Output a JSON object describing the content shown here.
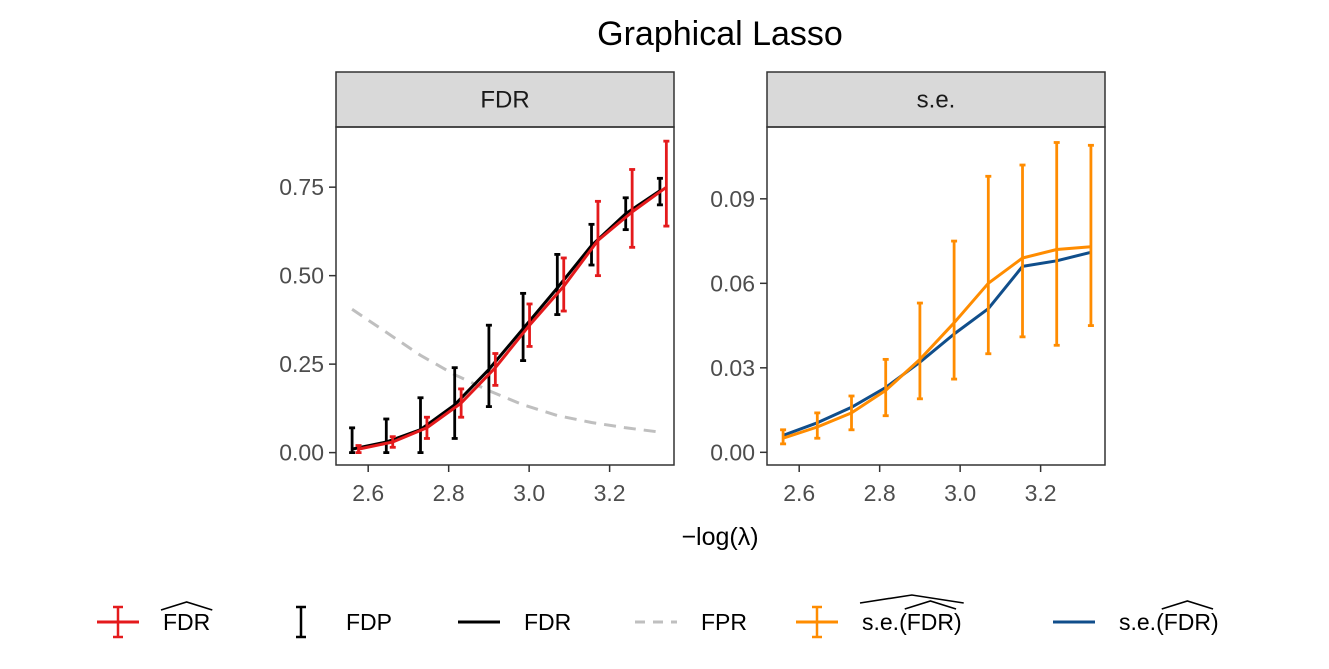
{
  "chart_data": {
    "title": "Graphical Lasso",
    "xlabel": "−log(λ)",
    "panels": [
      {
        "strip": "FDR",
        "type": "line",
        "xlim": [
          2.52,
          3.36
        ],
        "ylim": [
          -0.035,
          0.92
        ],
        "xticks": [
          2.6,
          2.8,
          3.0,
          3.2
        ],
        "xtick_labels": [
          "2.6",
          "2.8",
          "3.0",
          "3.2"
        ],
        "yticks": [
          0.0,
          0.25,
          0.5,
          0.75
        ],
        "ytick_labels": [
          "0.00",
          "0.25",
          "0.50",
          "0.75"
        ],
        "series": [
          {
            "name": "FDR (estimate)",
            "legend": "FDR",
            "hat": true,
            "color": "#e41a1c",
            "style": "errorbar-line",
            "x": [
              2.576,
              2.661,
              2.746,
              2.831,
              2.916,
              3.001,
              3.086,
              3.171,
              3.256,
              3.341
            ],
            "values": [
              0.01,
              0.03,
              0.07,
              0.14,
              0.24,
              0.36,
              0.47,
              0.6,
              0.68,
              0.75
            ],
            "lower": [
              0.0,
              0.015,
              0.04,
              0.1,
              0.19,
              0.3,
              0.4,
              0.5,
              0.58,
              0.64
            ],
            "upper": [
              0.02,
              0.045,
              0.1,
              0.18,
              0.28,
              0.42,
              0.55,
              0.71,
              0.8,
              0.88
            ]
          },
          {
            "name": "FDP",
            "legend": "FDP",
            "color": "#000000",
            "style": "errorbar",
            "x": [
              2.56,
              2.645,
              2.73,
              2.815,
              2.9,
              2.985,
              3.07,
              3.155,
              3.24,
              3.325
            ],
            "values": [
              0.035,
              0.045,
              0.075,
              0.14,
              0.245,
              0.355,
              0.475,
              0.585,
              0.675,
              0.74
            ],
            "lower": [
              0.0,
              0.0,
              0.0,
              0.04,
              0.13,
              0.26,
              0.39,
              0.53,
              0.63,
              0.7
            ],
            "upper": [
              0.07,
              0.095,
              0.155,
              0.24,
              0.36,
              0.45,
              0.56,
              0.645,
              0.72,
              0.775
            ]
          },
          {
            "name": "FDR",
            "legend": "FDR",
            "color": "#000000",
            "style": "line",
            "x": [
              2.56,
              2.645,
              2.73,
              2.815,
              2.9,
              2.985,
              3.07,
              3.155,
              3.24,
              3.325
            ],
            "values": [
              0.01,
              0.03,
              0.065,
              0.135,
              0.235,
              0.35,
              0.465,
              0.585,
              0.675,
              0.74
            ]
          },
          {
            "name": "FPR",
            "legend": "FPR",
            "color": "#bfbfbf",
            "style": "dashed",
            "x": [
              2.56,
              2.645,
              2.73,
              2.815,
              2.9,
              2.985,
              3.07,
              3.155,
              3.24,
              3.325
            ],
            "values": [
              0.405,
              0.34,
              0.275,
              0.22,
              0.175,
              0.135,
              0.105,
              0.085,
              0.07,
              0.058
            ]
          }
        ]
      },
      {
        "strip": "s.e.",
        "type": "line",
        "xlim": [
          2.52,
          3.36
        ],
        "ylim": [
          -0.0045,
          0.1155
        ],
        "xticks": [
          2.6,
          2.8,
          3.0,
          3.2
        ],
        "xtick_labels": [
          "2.6",
          "2.8",
          "3.0",
          "3.2"
        ],
        "yticks": [
          0.0,
          0.03,
          0.06,
          0.09
        ],
        "ytick_labels": [
          "0.00",
          "0.03",
          "0.06",
          "0.09"
        ],
        "series": [
          {
            "name": "s.e.(FDR) estimate",
            "legend_prefix": "s.e.",
            "legend_inner": "FDR",
            "hat_outer": true,
            "color": "#ff8c00",
            "style": "errorbar-line",
            "x": [
              2.56,
              2.645,
              2.73,
              2.815,
              2.9,
              2.985,
              3.07,
              3.155,
              3.24,
              3.325
            ],
            "values": [
              0.005,
              0.009,
              0.014,
              0.022,
              0.033,
              0.046,
              0.06,
              0.069,
              0.072,
              0.073
            ],
            "lower": [
              0.003,
              0.005,
              0.008,
              0.013,
              0.019,
              0.026,
              0.035,
              0.041,
              0.038,
              0.045
            ],
            "upper": [
              0.008,
              0.014,
              0.02,
              0.033,
              0.053,
              0.075,
              0.098,
              0.102,
              0.11,
              0.109
            ]
          },
          {
            "name": "s.e.(FDR)",
            "legend_prefix": "s.e.",
            "legend_inner": "FDR",
            "hat_outer": false,
            "color": "#104e8b",
            "style": "line",
            "x": [
              2.56,
              2.645,
              2.73,
              2.815,
              2.9,
              2.985,
              3.07,
              3.155,
              3.24,
              3.325
            ],
            "values": [
              0.006,
              0.0105,
              0.016,
              0.023,
              0.032,
              0.042,
              0.051,
              0.066,
              0.068,
              0.071
            ]
          }
        ]
      }
    ],
    "legend": {
      "position": "bottom",
      "items": [
        {
          "label": "FDR",
          "hat": true,
          "key": "errorbar-line",
          "color": "#e41a1c"
        },
        {
          "label": "FDP",
          "hat": false,
          "key": "errorbar",
          "color": "#000000"
        },
        {
          "label": "FDR",
          "hat": false,
          "key": "line",
          "color": "#000000"
        },
        {
          "label": "FPR",
          "hat": false,
          "key": "dashed",
          "color": "#bfbfbf"
        },
        {
          "prefix": "s.e.",
          "inner": "FDR",
          "hat_outer": true,
          "key": "errorbar-line",
          "color": "#ff8c00"
        },
        {
          "prefix": "s.e.",
          "inner": "FDR",
          "hat_outer": false,
          "key": "line",
          "color": "#104e8b"
        }
      ]
    }
  }
}
